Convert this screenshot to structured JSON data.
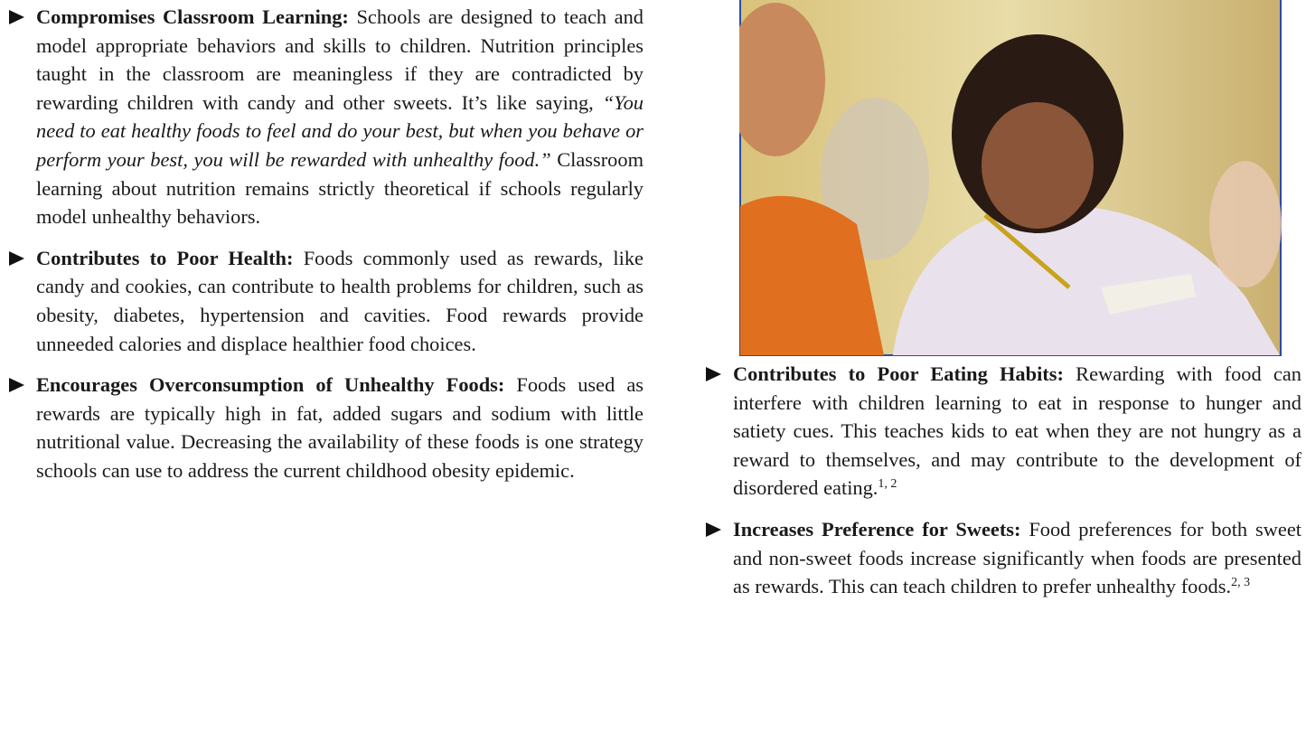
{
  "items": [
    {
      "heading": "Compromises Classroom Learning:",
      "text": "Schools are designed to teach and model appropriate behaviors and skills to children. Nutrition principles taught in the classroom are meaningless if they are contradicted by rewarding children with candy and other sweets. It’s like saying,",
      "quote": "“You need to eat healthy foods to feel and do your best, but when you behave or perform your best, you will be rewarded with unhealthy food.”",
      "text_after": "Classroom learning about nutrition remains strictly theoretical if schools regularly model unhealthy behaviors."
    },
    {
      "heading": "Contributes to Poor Health:",
      "text": "Foods commonly used as rewards, like candy and cookies, can contribute to health problems for children, such as obesity, diabetes, hypertension and cavities. Food rewards provide unneeded calories and displace healthier food choices."
    },
    {
      "heading": "Encourages Overconsumption of Unhealthy Foods:",
      "text": "Foods used as rewards are typically high in fat, added sugars and sodium with little nutritional value. Decreasing the availability of these foods is one strategy schools can use to address the current childhood obesity epidemic."
    },
    {
      "heading": "Contributes to Poor Eating Habits:",
      "text": "Rewarding with food can interfere with children learning to eat in response to hunger and satiety cues. This teaches kids to eat when they are not hungry as a reward to themselves, and may contribute to the development of disordered eating.",
      "refs": "1, 2"
    },
    {
      "heading": "Increases Preference for Sweets:",
      "text": "Food preferences for both sweet and non-sweet foods increase significantly when foods are presented as rewards. This can teach children to prefer unhealthy foods.",
      "refs": "2, 3"
    }
  ]
}
